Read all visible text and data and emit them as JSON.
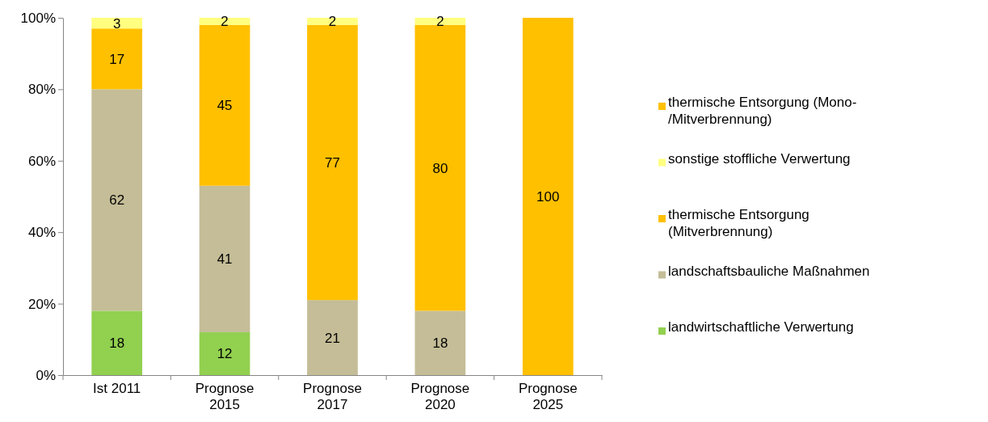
{
  "chart_data": {
    "type": "bar",
    "stacked": true,
    "categories": [
      "Ist 2011",
      "Prognose 2015",
      "Prognose 2017",
      "Prognose 2020",
      "Prognose 2025"
    ],
    "series": [
      {
        "name": "landwirtschaftliche Verwertung",
        "color": "#92d050",
        "values": [
          18,
          12,
          null,
          null,
          null
        ]
      },
      {
        "name": "landschaftsbauliche Maßnahmen",
        "color": "#c4bd97",
        "values": [
          62,
          41,
          21,
          18,
          null
        ]
      },
      {
        "name": "thermische Entsorgung (Mitverbrennung)",
        "color": "#ffc000",
        "values": [
          17,
          45,
          77,
          80,
          null
        ]
      },
      {
        "name": "sonstige stoffliche Verwertung",
        "color": "#ffff80",
        "values": [
          3,
          2,
          2,
          2,
          null
        ]
      },
      {
        "name": "thermische Entsorgung (Mono-/Mitverbrennung)",
        "color": "#ffc000",
        "values": [
          null,
          null,
          null,
          null,
          100
        ]
      }
    ],
    "ylim": [
      0,
      100
    ],
    "yticks": [
      {
        "value": 0,
        "label": "0%"
      },
      {
        "value": 20,
        "label": "20%"
      },
      {
        "value": 40,
        "label": "40%"
      },
      {
        "value": 60,
        "label": "60%"
      },
      {
        "value": 80,
        "label": "80%"
      },
      {
        "value": 100,
        "label": "100%"
      }
    ],
    "data_labels": true,
    "legend": "right",
    "grid": false
  }
}
